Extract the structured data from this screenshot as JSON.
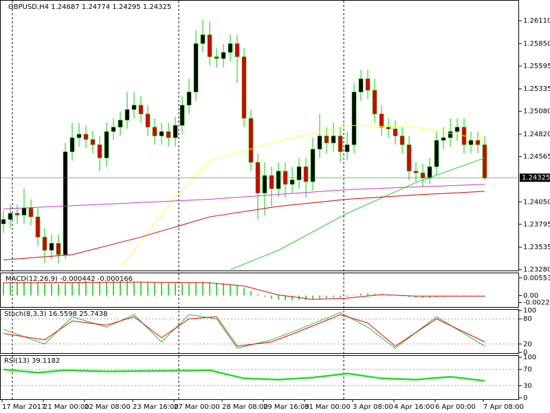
{
  "chart_data": [
    {
      "type": "candlestick",
      "title": "GBPUSD,H4  1.24687 1.24774 1.24295 1.24325",
      "categories": [
        "17 Mar 2017",
        null,
        null,
        null,
        null,
        null,
        "21 Mar 00:00",
        null,
        null,
        null,
        null,
        null,
        "22 Mar 08:00",
        null,
        null,
        null,
        null,
        null,
        null,
        "23 Mar 16:00",
        null,
        null,
        null,
        null,
        null,
        "27 Mar 00:00",
        null,
        null,
        null,
        null,
        null,
        null,
        "28 Mar 08:00",
        null,
        null,
        null,
        null,
        null,
        "29 Mar 16:00",
        null,
        null,
        null,
        null,
        null,
        "31 Mar 00:00",
        null,
        null,
        null,
        null,
        null,
        null,
        "3 Apr 08:00",
        null,
        null,
        null,
        null,
        null,
        "4 Apr 16:00",
        null,
        null,
        null,
        null,
        null,
        "6 Apr 00:00",
        null,
        null,
        null,
        null,
        null,
        null,
        "7 Apr 08:00"
      ],
      "open": [
        1.238,
        1.2385,
        1.2392,
        1.239,
        1.2398,
        1.2388,
        1.2365,
        1.235,
        1.2358,
        1.2345,
        1.2462,
        1.2478,
        1.2482,
        1.2476,
        1.247,
        1.2455,
        1.2485,
        1.249,
        1.2498,
        1.251,
        1.2515,
        1.2505,
        1.249,
        1.248,
        1.2485,
        1.2478,
        1.2492,
        1.2515,
        1.253,
        1.2585,
        1.2595,
        1.257,
        1.2568,
        1.2575,
        1.2585,
        1.257,
        1.25,
        1.245,
        1.2415,
        1.2435,
        1.242,
        1.244,
        1.2425,
        1.243,
        1.2445,
        1.2428,
        1.2465,
        1.248,
        1.2472,
        1.248,
        1.2462,
        1.247,
        1.253,
        1.2545,
        1.2532,
        1.2505,
        1.249,
        1.2488,
        1.248,
        1.247,
        1.244,
        1.2438,
        1.2432,
        1.2445,
        1.2475,
        1.2478,
        1.2485,
        1.249,
        1.247,
        1.2475,
        1.247
      ],
      "high": [
        1.2395,
        1.2402,
        1.2402,
        1.242,
        1.2408,
        1.2398,
        1.2375,
        1.2368,
        1.2368,
        1.2472,
        1.2495,
        1.2495,
        1.2492,
        1.2486,
        1.248,
        1.2495,
        1.25,
        1.2508,
        1.253,
        1.253,
        1.2525,
        1.2515,
        1.25,
        1.2495,
        1.2495,
        1.2502,
        1.2525,
        1.2545,
        1.26,
        1.2612,
        1.261,
        1.258,
        1.2585,
        1.2595,
        1.2595,
        1.258,
        1.251,
        1.246,
        1.245,
        1.2445,
        1.245,
        1.245,
        1.2445,
        1.2455,
        1.2455,
        1.2478,
        1.2505,
        1.249,
        1.2495,
        1.249,
        1.2485,
        1.254,
        1.2555,
        1.2555,
        1.2545,
        1.2515,
        1.25,
        1.2498,
        1.249,
        1.248,
        1.245,
        1.2448,
        1.2455,
        1.2485,
        1.249,
        1.25,
        1.25,
        1.25,
        1.2485,
        1.2485,
        1.248
      ],
      "low": [
        1.237,
        1.2375,
        1.238,
        1.238,
        1.2378,
        1.2355,
        1.2335,
        1.234,
        1.2335,
        1.234,
        1.2452,
        1.2468,
        1.2466,
        1.246,
        1.244,
        1.2445,
        1.2475,
        1.248,
        1.2488,
        1.25,
        1.2495,
        1.248,
        1.247,
        1.247,
        1.2468,
        1.2468,
        1.2482,
        1.2505,
        1.252,
        1.2575,
        1.256,
        1.2558,
        1.2558,
        1.2565,
        1.254,
        1.249,
        1.244,
        1.2385,
        1.239,
        1.24,
        1.241,
        1.241,
        1.2415,
        1.242,
        1.241,
        1.2418,
        1.2455,
        1.246,
        1.2462,
        1.245,
        1.2452,
        1.246,
        1.252,
        1.2522,
        1.2495,
        1.248,
        1.2478,
        1.247,
        1.246,
        1.243,
        1.2428,
        1.2422,
        1.2425,
        1.2435,
        1.2465,
        1.2468,
        1.2475,
        1.246,
        1.246,
        1.246,
        1.243
      ],
      "close": [
        1.2385,
        1.2392,
        1.239,
        1.2398,
        1.2388,
        1.2365,
        1.235,
        1.2358,
        1.2345,
        1.2462,
        1.2478,
        1.2482,
        1.2476,
        1.247,
        1.2455,
        1.2485,
        1.249,
        1.2498,
        1.251,
        1.2515,
        1.2505,
        1.249,
        1.248,
        1.2485,
        1.2478,
        1.2492,
        1.2515,
        1.253,
        1.2585,
        1.2595,
        1.257,
        1.2568,
        1.2575,
        1.2585,
        1.257,
        1.25,
        1.245,
        1.2415,
        1.2435,
        1.242,
        1.244,
        1.2425,
        1.243,
        1.2445,
        1.2428,
        1.2465,
        1.248,
        1.2472,
        1.248,
        1.2462,
        1.247,
        1.253,
        1.2545,
        1.2532,
        1.2505,
        1.249,
        1.2488,
        1.248,
        1.247,
        1.244,
        1.2438,
        1.2432,
        1.2445,
        1.2475,
        1.2478,
        1.2485,
        1.249,
        1.247,
        1.2475,
        1.247,
        1.2432
      ],
      "up_color": "#000000",
      "down_color": "#d40000",
      "wick_color": "#00cc00",
      "overlays": [
        {
          "color": "#ffff33",
          "x": [
            17,
            20,
            25,
            30,
            40,
            50,
            60,
            70
          ],
          "values": [
            1.233,
            1.236,
            1.241,
            1.2452,
            1.2474,
            1.2492,
            1.249,
            1.2476
          ]
        },
        {
          "color": "#22cc22",
          "x": [
            33,
            40,
            50,
            60,
            70
          ],
          "values": [
            1.2328,
            1.235,
            1.2392,
            1.2427,
            1.2455
          ]
        },
        {
          "color": "#cc33cc",
          "x": [
            0,
            30,
            50,
            70
          ],
          "values": [
            1.2397,
            1.2408,
            1.2419,
            1.2425
          ]
        },
        {
          "color": "#cc0000",
          "x": [
            0,
            10,
            20,
            30,
            40,
            50,
            60,
            70
          ],
          "values": [
            1.2339,
            1.2345,
            1.2365,
            1.2388,
            1.24,
            1.2408,
            1.2413,
            1.2417
          ]
        }
      ],
      "last_price": 1.24325,
      "ylim": [
        1.2327,
        1.2633
      ],
      "yticks": [
        {
          "value": 1.2611,
          "label": "1.26110"
        },
        {
          "value": 1.2585,
          "label": "1.25850"
        },
        {
          "value": 1.25595,
          "label": "1.25595"
        },
        {
          "value": 1.25335,
          "label": "1.25335"
        },
        {
          "value": 1.2508,
          "label": "1.25080"
        },
        {
          "value": 1.2482,
          "label": "1.24820"
        },
        {
          "value": 1.24565,
          "label": "1.24565"
        },
        {
          "value": 1.2405,
          "label": "1.24050"
        },
        {
          "value": 1.23795,
          "label": "1.23795"
        },
        {
          "value": 1.23535,
          "label": "1.23535"
        },
        {
          "value": 1.2328,
          "label": "1.23280"
        }
      ]
    },
    {
      "type": "histogram",
      "title": "MACD(12,26,9) -0.000442 -0.000166",
      "color": "#00cc00",
      "values": [
        0.004,
        0.0042,
        0.0043,
        0.0044,
        0.0043,
        0.0041,
        0.0039,
        0.0038,
        0.0036,
        0.0038,
        0.0042,
        0.0044,
        0.0045,
        0.0045,
        0.0044,
        0.0045,
        0.0045,
        0.0045,
        0.0045,
        0.0045,
        0.0044,
        0.0043,
        0.0041,
        0.004,
        0.0039,
        0.0038,
        0.0038,
        0.0039,
        0.0042,
        0.0044,
        0.0042,
        0.004,
        0.0038,
        0.0036,
        0.0032,
        0.0024,
        0.0014,
        0.0004,
        -0.0004,
        -0.001,
        -0.0013,
        -0.0015,
        -0.0015,
        -0.0014,
        -0.0014,
        -0.0012,
        -0.0009,
        -0.0008,
        -0.0006,
        -0.0006,
        -0.0004,
        0.0002,
        0.0006,
        0.0007,
        0.0006,
        0.0004,
        0.0002,
        0.0,
        -0.0002,
        -0.0005,
        -0.0007,
        -0.0008,
        -0.0008,
        -0.0006,
        -0.0004,
        -0.0003,
        -0.0002,
        -0.0002,
        -0.0002,
        -0.0003,
        -0.0004
      ],
      "series": [
        {
          "color": "#dd0000",
          "x": [
            0,
            20,
            30,
            35,
            40,
            45,
            50,
            55,
            60,
            70
          ],
          "values": [
            0.004,
            0.0042,
            0.004,
            0.003,
            0.0002,
            -0.0012,
            -0.0008,
            0.0003,
            -0.0002,
            -0.0002
          ]
        }
      ],
      "ylim": [
        -0.0036,
        0.0068
      ],
      "yticks": [
        0.005537,
        {
          "value": 0,
          "label": "0.00"
        },
        -0.002205
      ]
    },
    {
      "type": "line",
      "title": "Stoch(8,3,3) 16.5598 25.7438",
      "series": [
        {
          "color": "#22bb22",
          "x": [
            0,
            6,
            10,
            15,
            19,
            23,
            27,
            31,
            34,
            39,
            43,
            49,
            53,
            57,
            63,
            70
          ],
          "values": [
            55,
            20,
            85,
            60,
            90,
            25,
            90,
            80,
            10,
            30,
            55,
            95,
            60,
            10,
            85,
            15
          ]
        },
        {
          "color": "#dd0000",
          "x": [
            0,
            6,
            10,
            15,
            19,
            23,
            27,
            31,
            34,
            39,
            43,
            49,
            53,
            57,
            63,
            70
          ],
          "values": [
            45,
            30,
            75,
            65,
            85,
            35,
            80,
            85,
            15,
            25,
            50,
            90,
            70,
            15,
            80,
            25
          ]
        }
      ],
      "ylim": [
        0,
        100
      ],
      "yticks": [
        100,
        80,
        20,
        0
      ],
      "levels": [
        80,
        20
      ]
    },
    {
      "type": "line",
      "title": "RSI(13) 39.1182",
      "series": [
        {
          "color": "#22dd22",
          "x": [
            0,
            5,
            9,
            15,
            20,
            27,
            30,
            35,
            40,
            45,
            50,
            55,
            60,
            65,
            70
          ],
          "values": [
            70,
            62,
            68,
            65,
            66,
            67,
            68,
            48,
            45,
            50,
            60,
            48,
            45,
            52,
            42
          ]
        }
      ],
      "ylim": [
        0,
        100
      ],
      "yticks": [
        100,
        70,
        30,
        0
      ],
      "levels": [
        70,
        30
      ]
    }
  ]
}
